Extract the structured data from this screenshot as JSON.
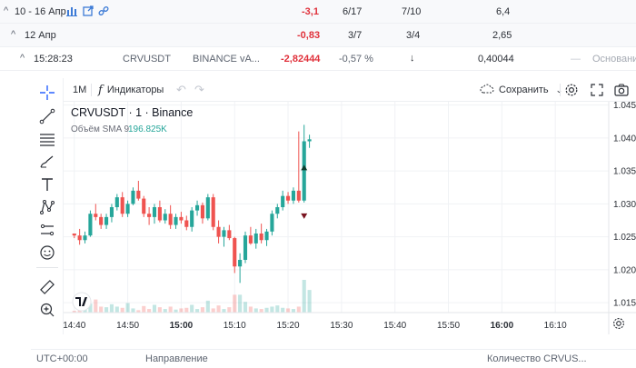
{
  "rows": [
    {
      "caret": "^",
      "label": "10 - 16 Апр",
      "pnl": "-3,1",
      "a": "6/17",
      "b": "7/10",
      "c": "6,4"
    },
    {
      "caret": "^",
      "label": "12 Апр",
      "pnl": "-0,83",
      "a": "3/7",
      "b": "3/4",
      "c": "2,65"
    }
  ],
  "trade": {
    "caret": "^",
    "time": "15:28:23",
    "symbol": "CRVUSDT",
    "exchange": "BINANCE vA...",
    "pnl": "-2,82444",
    "pct": "-0,57 %",
    "direction": "↓",
    "price": "0,40044",
    "dash": "—",
    "basis": "Основание"
  },
  "topbar": {
    "interval": "1M",
    "indicators": "Индикаторы",
    "save": "Сохранить"
  },
  "chart_data": {
    "type": "candlestick",
    "title": "CRVUSDT · 1 · Binance",
    "volume_label": "Объём SMA 9",
    "volume_value": "196.825K",
    "x_ticks": [
      "14:40",
      "14:50",
      "15:00",
      "15:10",
      "15:20",
      "15:30",
      "15:40",
      "15:50",
      "16:00",
      "16:10"
    ],
    "x_tick_bold": [
      "15:00",
      "16:00"
    ],
    "y_ticks": [
      "1.045",
      "1.040",
      "1.035",
      "1.030",
      "1.025",
      "1.020",
      "1.015"
    ],
    "ylim": [
      1.0135,
      1.0455
    ],
    "xlim_minutes": [
      -2,
      100
    ],
    "up_color": "#26a69a",
    "down_color": "#ef5350",
    "candles": [
      [
        1.0255,
        1.0255,
        1.0248,
        1.0252
      ],
      [
        1.0252,
        1.0262,
        1.0238,
        1.0245
      ],
      [
        1.0245,
        1.0258,
        1.024,
        1.0252
      ],
      [
        1.0252,
        1.029,
        1.025,
        1.0285
      ],
      [
        1.0285,
        1.03,
        1.0275,
        1.028
      ],
      [
        1.028,
        1.0285,
        1.0262,
        1.0268
      ],
      [
        1.0268,
        1.0285,
        1.0262,
        1.028
      ],
      [
        1.028,
        1.03,
        1.0272,
        1.0295
      ],
      [
        1.0295,
        1.0315,
        1.029,
        1.031
      ],
      [
        1.031,
        1.0318,
        1.028,
        1.0285
      ],
      [
        1.0285,
        1.0305,
        1.028,
        1.03
      ],
      [
        1.03,
        1.0325,
        1.0298,
        1.032
      ],
      [
        1.032,
        1.0335,
        1.0305,
        1.0308
      ],
      [
        1.0308,
        1.0312,
        1.028,
        1.0285
      ],
      [
        1.0285,
        1.0295,
        1.0268,
        1.028
      ],
      [
        1.028,
        1.03,
        1.027,
        1.0295
      ],
      [
        1.0295,
        1.0305,
        1.0272,
        1.0275
      ],
      [
        1.0275,
        1.0292,
        1.027,
        1.0285
      ],
      [
        1.0285,
        1.0298,
        1.0262,
        1.0268
      ],
      [
        1.0268,
        1.0285,
        1.0262,
        1.028
      ],
      [
        1.028,
        1.0288,
        1.027,
        1.0275
      ],
      [
        1.0275,
        1.0282,
        1.026,
        1.0265
      ],
      [
        1.0265,
        1.0295,
        1.0258,
        1.029
      ],
      [
        1.029,
        1.0305,
        1.0282,
        1.0298
      ],
      [
        1.0298,
        1.0302,
        1.027,
        1.0278
      ],
      [
        1.0278,
        1.0315,
        1.0275,
        1.031
      ],
      [
        1.031,
        1.0315,
        1.026,
        1.0265
      ],
      [
        1.0265,
        1.0275,
        1.024,
        1.025
      ],
      [
        1.025,
        1.0265,
        1.0235,
        1.026
      ],
      [
        1.026,
        1.0268,
        1.0245,
        1.0248
      ],
      [
        1.0248,
        1.025,
        1.0195,
        1.0205
      ],
      [
        1.0205,
        1.0225,
        1.018,
        1.0215
      ],
      [
        1.0215,
        1.0258,
        1.021,
        1.0252
      ],
      [
        1.0252,
        1.0265,
        1.0238,
        1.024
      ],
      [
        1.024,
        1.0262,
        1.0232,
        1.0255
      ],
      [
        1.0255,
        1.027,
        1.024,
        1.0245
      ],
      [
        1.0245,
        1.0262,
        1.0236,
        1.0258
      ],
      [
        1.0258,
        1.029,
        1.0252,
        1.0285
      ],
      [
        1.0285,
        1.03,
        1.0278,
        1.0295
      ],
      [
        1.0295,
        1.032,
        1.029,
        1.0312
      ],
      [
        1.0312,
        1.0318,
        1.03,
        1.0305
      ],
      [
        1.0305,
        1.0325,
        1.03,
        1.032
      ],
      [
        1.032,
        1.041,
        1.0302,
        1.0305
      ],
      [
        1.0305,
        1.042,
        1.0302,
        1.0395
      ],
      [
        1.0395,
        1.0405,
        1.0385,
        1.0398
      ]
    ],
    "volumes": [
      3,
      7,
      5,
      15,
      22,
      10,
      9,
      14,
      10,
      8,
      16,
      7,
      4,
      11,
      6,
      13,
      9,
      6,
      10,
      5,
      7,
      8,
      13,
      6,
      9,
      20,
      7,
      12,
      6,
      9,
      30,
      30,
      18,
      10,
      7,
      6,
      8,
      10,
      12,
      8,
      7,
      6,
      10,
      55,
      38
    ]
  },
  "bottom": {
    "tz": "UTC+00:00",
    "direction": "Направление",
    "qty": "Количество CRVUS..."
  }
}
